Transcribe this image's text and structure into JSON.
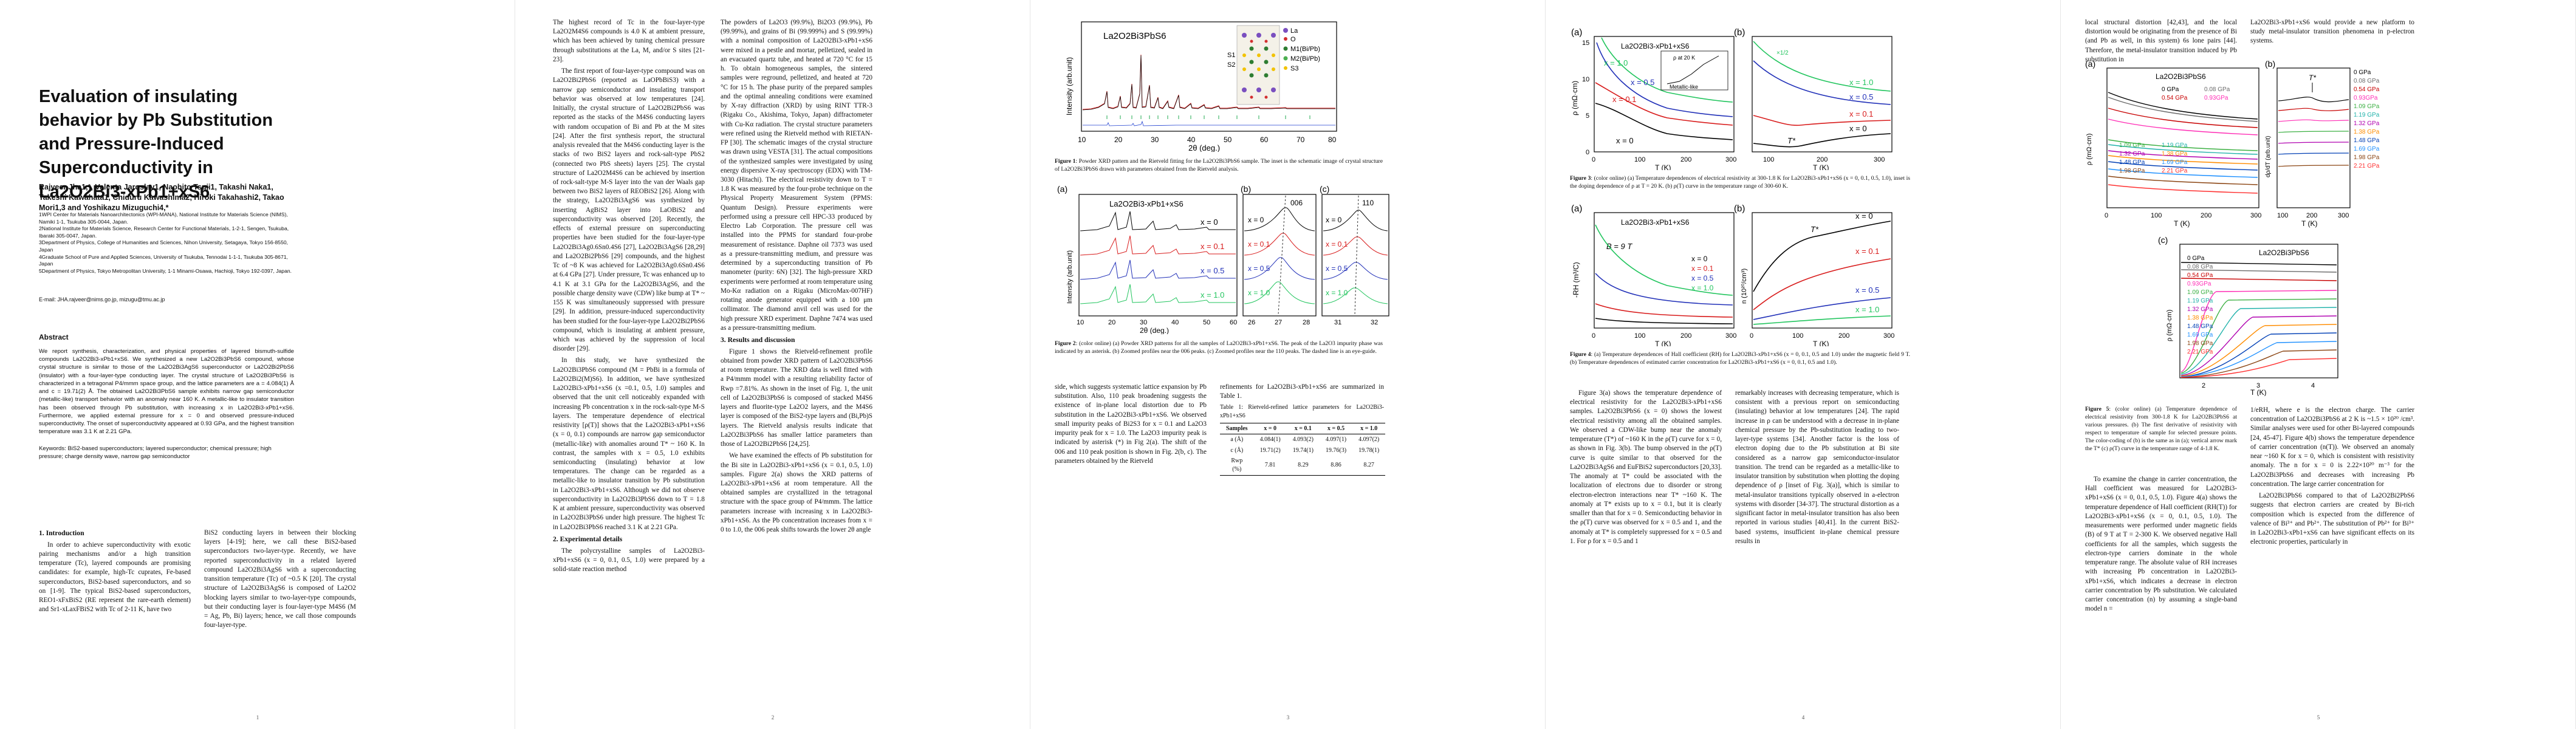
{
  "title": "Evaluation of insulating behavior by Pb Substitution and Pressure-Induced Superconductivity in La2O2Bi3-xPb1+xS6",
  "authors": "Rajveer Jha1,*, Valenta Jaroslav1, Naohito Tsuji1, Takashi Naka1, Takeshi Kawahata1, Chiduru Kawashima2, Hiroki Takahashi2, Takao Mori1,3 and Yoshikazu Mizuguchi4,*",
  "affiliations": [
    "1WPI Center for Materials Nanoarchitectonics (WPI-MANA), National Institute for Materials Science (NIMS), Namiki 1-1, Tsukuba 305-0044, Japan.",
    "2National Institute for Materials Science, Research Center for Functional Materials, 1-2-1, Sengen, Tsukuba, Ibaraki 305-0047, Japan.",
    "3Department of Physics, College of Humanities and Sciences, Nihon University, Setagaya, Tokyo 156-8550, Japan",
    "4Graduate School of Pure and Applied Sciences, University of Tsukuba, Tennodai 1-1-1, Tsukuba 305-8671, Japan",
    "5Department of Physics, Tokyo Metropolitan University, 1-1 Minami-Osawa, Hachioji, Tokyo 192-0397, Japan."
  ],
  "email": "E-mail: JHA.rajveer@nims.go.jp, mizugu@tmu.ac.jp",
  "abstract_heading": "Abstract",
  "abstract": "We report synthesis, characterization, and physical properties of layered bismuth-sulfide compounds La2O2Bi3-xPb1+xS6. We synthesized a new La2O2Bi3PbS6 compound, whose crystal structure is similar to those of the La2O2Bi3AgS6 superconductor or La2O2Bi2PbS6 (insulator) with a four-layer-type conducting layer. The crystal structure of La2O2Bi3PbS6 is characterized in a tetragonal P4/mmm space group, and the lattice parameters are a = 4.084(1) Å and c = 19.71(2) Å. The obtained La2O2Bi3PbS6 sample exhibits narrow gap semiconductor (metallic-like) transport behavior with an anomaly near 160 K. A metallic-like to insulator transition has been observed through Pb substitution, with increasing x in La2O2Bi3-xPb1+xS6. Furthermore, we applied external pressure for x = 0 and observed pressure-induced superconductivity. The onset of superconductivity appeared at 0.93 GPa, and the highest transition temperature was 3.1 K at 2.21 GPa.",
  "keywords": "Keywords: BiS2-based superconductors; layered superconductor; chemical pressure; high pressure; charge density wave, narrow gap semiconductor",
  "p1": {
    "sec1": "1.   Introduction",
    "intro_para": "In order to achieve superconductivity with exotic pairing mechanisms and/or a high transition temperature (Tc), layered compounds are promising candidates: for example, high-Tc cuprates, Fe-based superconductors, BiS2-based superconductors, and so on [1-9]. The typical BiS2-based superconductors, REO1-xFxBiS2 (RE represent the rare-earth element) and Sr1-xLaxFBiS2 with Tc of 2-11 K, have two",
    "col2": "BiS2 conducting layers in between their blocking layers [4-19]; here, we call these BiS2-based superconductors two-layer-type. Recently, we have reported superconductivity in a related layered compound La2O2Bi3AgS6 with a superconducting transition temperature (Tc) of ~0.5 K [20]. The crystal structure of La2O2Bi3AgS6 is composed of La2O2 blocking layers similar to two-layer-type compounds, but their conducting layer is four-layer-type M4S6 (M = Ag, Pb, Bi) layers; hence, we call those compounds four-layer-type."
  },
  "p2": {
    "col1": [
      "The highest record of Tc in the four-layer-type La2O2M4S6 compounds is 4.0 K at ambient pressure, which has been achieved by tuning chemical pressure through substitutions at the La, M, and/or S sites [21-23].",
      "The first report of four-layer-type compound was on La2O2Bi2PbS6 (reported as LaOPbBiS3) with a narrow gap semiconductor and insulating transport behavior was observed at low temperatures [24]. Initially, the crystal structure of La2O2Bi2PbS6 was reported as the stacks of the M4S6 conducting layers with random occupation of Bi and Pb at the M sites [24]. After the first synthesis report, the structural analysis revealed that the M4S6 conducting layer is the stacks of two BiS2 layers and rock-salt-type PbS2 (connected two PbS sheets) layers [25]. The crystal structure of La2O2M4S6 can be achieved by insertion of rock-salt-type M-S layer into the van der Waals gap between two BiS2 layers of REOBiS2 [26]. Along with the strategy, La2O2Bi3AgS6 was synthesized by inserting AgBiS2 layer into LaOBiS2 and superconductivity was observed [20]. Recently, the effects of external pressure on superconducting properties have been studied for the four-layer-type La2O2Bi3Ag0.6Sn0.4S6 [27], La2O2Bi3AgS6 [28,29] and La2O2Bi2PbS6 [29] compounds, and the highest Tc of ~8 K was achieved for La2O2Bi3Ag0.6Sn0.4S6 at 6.4 GPa [27]. Under pressure, Tc was enhanced up to 4.1 K at 3.1 GPa for the La2O2Bi3AgS6, and the possible charge density wave (CDW) like bump at T* ~ 155 K was simultaneously suppressed with pressure [29]. In addition, pressure-induced superconductivity has been studied for the four-layer-type La2O2Bi2PbS6 compound, which is insulating at ambient pressure, which was achieved by the suppression of local disorder [29].",
      "In this study, we have synthesized the La2O2Bi3PbS6 compound (M = PbBi in a formula of La2O2Bi2(M)S6). In addition, we have synthesized La2O2Bi3-xPb1+xS6 (x =0.1, 0.5, 1.0) samples and observed that the unit cell noticeably expanded with increasing Pb concentration x in the rock-salt-type M-S layers. The temperature dependence of electrical resistivity [ρ(T)] shows that the La2O2Bi3-xPb1+xS6 (x = 0, 0.1) compounds are narrow gap semiconductor (metallic-like) with anomalies around T* ~ 160 K. In contrast, the samples with x = 0.5, 1.0 exhibits semiconducting (insulating) behavior at low temperatures. The change can be regarded as a metallic-like to insulator transition by Pb substitution in La2O2Bi3-xPb1+xS6. Although we did not observe superconductivity in La2O2Bi3PbS6 down to T = 1.8 K at ambient pressure, superconductivity was observed in La2O2Bi3PbS6 under high pressure. The highest Tc in La2O2Bi3PbS6 reached 3.1 K at 2.21 GPa."
    ],
    "sec2": "2.   Experimental details",
    "exp_para": "The polycrystalline samples of La2O2Bi3-xPb1+xS6 (x = 0, 0.1, 0.5, 1.0) were prepared by a solid-state reaction method",
    "col2": [
      "The powders of La2O3 (99.9%), Bi2O3 (99.9%), Pb (99.99%), and grains of Bi (99.999%) and S (99.99%) with a nominal composition of La2O2Bi3-xPb1+xS6 were mixed in a pestle and mortar, pelletized, sealed in an evacuated quartz tube, and heated at 720 °C for 15 h. To obtain homogeneous samples, the sintered samples were reground, pelletized, and heated at 720 °C for 15 h. The phase purity of the prepared samples and the optimal annealing conditions were examined by X-ray diffraction (XRD) by using RINT TTR-3 (Rigaku Co., Akishima, Tokyo, Japan) diffractometer with Cu-Kα radiation. The crystal structure parameters were refined using the Rietveld method with RIETAN-FP [30]. The schematic images of the crystal structure was drawn using VESTA [31]. The actual compositions of the synthesized samples were investigated by using energy dispersive X-ray spectroscopy (EDX) with TM-3030 (Hitachi). The electrical resistivity down to T = 1.8 K was measured by the four-probe technique on the Physical Property Measurement System (PPMS: Quantum Design). Pressure experiments were performed using a pressure cell HPC-33 produced by Electro Lab Corporation. The pressure cell was installed into the PPMS for standard four-probe measurement of resistance. Daphne oil 7373 was used as a pressure-transmitting medium, and pressure was determined by a superconducting transition of Pb manometer (purity: 6N) [32]. The high-pressure XRD experiments were performed at room temperature using Mo-Kα radiation on a Rigaku (MicroMax-007HF) rotating anode generator equipped with a 100 μm collimator. The diamond anvil cell was used for the high pressure XRD experiment. Daphne 7474 was used as a pressure-transmitting medium."
    ],
    "sec3": "3.   Results and discussion",
    "res_para": "Figure 1 shows the Rietveld-refinement profile obtained from powder XRD pattern of La2O2Bi3PbS6 at room temperature. The XRD data is well fitted with a P4/mmm model with a resulting reliability factor of Rwp =7.81%. As shown in the inset of Fig. 1, the unit cell of La2O2Bi3PbS6 is composed of stacked M4S6 layers and fluorite-type La2O2 layers, and the M4S6 layer is composed of the BiS2-type layers and (Bi,Pb)S layers. The Rietveld analysis results indicate that La2O2Bi3PbS6 has smaller lattice parameters than those of La2O2Bi2PbS6 [24,25].",
    "res_para2": "We have examined the effects of Pb substitution for the Bi site in La2O2Bi3-xPb1+xS6 (x = 0.1, 0.5, 1.0) samples. Figure 2(a) shows the XRD patterns of La2O2Bi3-xPb1+xS6 at room temperature. All the obtained samples are crystallized in the tetragonal structure with the space group of P4/mmm. The lattice parameters increase with increasing x in La2O2Bi3-xPb1+xS6. As the Pb concentration increases from x = 0 to 1.0, the 006 peak shifts towards the lower 2θ angle"
  },
  "p3": {
    "fig1_caption_label": "Figure 1",
    "fig1_caption": ": Powder XRD pattern and the Rietveld fitting for the La2O2Bi3PbS6 sample. The inset is the schematic image of crystal structure of La2O2Bi3PbS6 drawn with parameters obtained from the Rietveld analysis.",
    "fig2_caption_label": "Figure 2",
    "fig2_caption": ": (color online) (a) Powder XRD patterns for all the samples of La2O2Bi3-xPb1+xS6. The peak of the La2O3 impurity phase was indicated by an asterisk. (b) Zoomed profiles near the 006 peaks. (c) Zoomed profiles near the 110 peaks. The dashed line is an eye-guide.",
    "col1": "side, which suggests systematic lattice expansion by Pb substitution. Also, 110 peak broadening suggests the existence of in-plane local distortion due to Pb substitution in the La2O2Bi3-xPb1+xS6. We observed small impurity peaks of Bi2S3 for x = 0.1 and La2O3 impurity peak for x = 1.0. The La2O3 impurity peak is indicated by asterisk (*) in Fig 2(a). The shift of the 006 and 110 peak position is shown in Fig. 2(b, c). The parameters obtained by the Rietveld",
    "col2": "refinements for La2O2Bi3-xPb1+xS6 are summarized in Table 1.",
    "table_caption": "Table 1: Rietveld-refined lattice parameters for La2O2Bi3-xPb1+xS6",
    "table": {
      "headers": [
        "Samples",
        "x = 0",
        "x = 0.1",
        "x = 0.5",
        "x = 1.0"
      ],
      "rows": [
        [
          "a (Å)",
          "4.084(1)",
          "4.093(2)",
          "4.097(1)",
          "4.097(2)"
        ],
        [
          "c (Å)",
          "19.71(2)",
          "19.74(1)",
          "19.76(3)",
          "19.78(1)"
        ],
        [
          "Rwp (%)",
          "7.81",
          "8.29",
          "8.86",
          "8.27"
        ]
      ]
    },
    "fig1": {
      "label": "La2O2Bi3PbS6",
      "xlabel": "2θ (deg.)",
      "ylabel": "Intensity (arb.unit)",
      "xticks": [
        "10",
        "20",
        "30",
        "40",
        "50",
        "60",
        "70",
        "80"
      ],
      "legend": [
        "La",
        "O",
        "M1(Bi/Pb)",
        "M2(Bi/Pb)",
        "S3"
      ],
      "structure_labels": [
        "S1",
        "S2"
      ]
    },
    "fig2": {
      "a_label": "(a)",
      "b_label": "(b)",
      "c_label": "(c)",
      "formula": "La2O2Bi3-xPb1+xS6",
      "series": [
        "x = 0",
        "x = 0.1",
        "x = 0.5",
        "x = 1.0"
      ],
      "colors": [
        "#000000",
        "#d81b1b",
        "#2130b8",
        "#22c55e"
      ],
      "peak006": "006",
      "peak110": "110",
      "xlabel": "2θ (deg.)",
      "ylabel": "Intensity (arb.unit)",
      "xticks_a": [
        "10",
        "20",
        "30",
        "40",
        "50",
        "60"
      ],
      "xticks_b": [
        "26",
        "27",
        "28"
      ],
      "xticks_c": [
        "31",
        "32"
      ]
    }
  },
  "p4": {
    "fig3_caption_label": "Figure 3",
    "fig3_caption": ": (color online) (a) Temperature dependences of electrical resistivity at 300-1.8 K for La2O2Bi3-xPb1+xS6 (x = 0, 0.1, 0.5, 1.0), inset is the doping dependence of ρ at T = 20 K. (b) ρ(T) curve in the temperature range of 300-60 K.",
    "fig4_caption_label": "Figure 4",
    "fig4_caption": ": (a) Temperature dependences of Hall coefficient (RH) for La2O2Bi3-xPb1+xS6 (x = 0, 0.1, 0.5 and 1.0) under the magnetic field 9 T. (b) Temperature dependences of estimated carrier concentration for La2O2Bi3-xPb1+xS6 (x = 0, 0.1, 0.5 and 1.0).",
    "col1": "Figure 3(a) shows the temperature dependence of electrical resistivity for the La2O2Bi3-xPb1+xS6 samples. La2O2Bi3PbS6 (x = 0) shows the lowest electrical resistivity among all the obtained samples. We observed a CDW-like bump near the anomaly temperature (T*) of ~160 K in the ρ(T) curve for x = 0, as shown in Fig. 3(b). The bump observed in the ρ(T) curve is quite similar to that observed for the La2O2Bi3AgS6 and EuFBiS2 superconductors [20,33]. The anomaly at T* could be associated with the localization of electrons due to disorder or strong electron-electron interactions near T* ~160 K. The anomaly at T* exists up to x = 0.1, but it is clearly smaller than that for x = 0. Semiconducting behavior in the ρ(T) curve was observed for x = 0.5 and 1, and the anomaly at T* is completely suppressed for x = 0.5 and 1. For ρ for x = 0.5 and 1",
    "col2": "remarkably increases with decreasing temperature, which is consistent with a previous report on semiconducting (insulating) behavior at low temperatures [24]. The rapid increase in ρ can be understood with a decrease in in-plane chemical pressure by the Pb-substitution leading to two-layer-type systems [34]. Another factor is the loss of electron doping due to the Pb substitution at Bi site considered as a narrow gap semiconductor-insulator transition. The trend can be regarded as a metallic-like to insulator transition by substitution when plotting the doping dependence of ρ [inset of Fig. 3(a)], which is similar to metal-insulator transitions typically observed in a-electron systems with disorder [34-37]. The structural distortion as a significant factor in metal-insulator transition has also been reported in various studies [40,41]. In the current BiS2-based systems, insufficient in-plane chemical pressure results in",
    "fig3": {
      "a_label": "(a)",
      "b_label": "(b)",
      "formula": "La2O2Bi3-xPb1+xS6",
      "ylabel": "ρ (mΩ·cm)",
      "xlabel": "T (K)",
      "xticks_a": [
        "0",
        "100",
        "200",
        "300"
      ],
      "xticks_b": [
        "100",
        "200",
        "300"
      ],
      "yticks_a": [
        "0",
        "5",
        "10",
        "15"
      ],
      "series": [
        "x = 0",
        "x = 0.1",
        "x = 0.5",
        "x = 1.0"
      ],
      "colors": [
        "#000000",
        "#d81b1b",
        "#2130b8",
        "#22c55e"
      ],
      "tstar": "T*",
      "inset_note": "ρ at 20 K",
      "inset_label": "Metallic-like",
      "curve_note": "×1/2"
    },
    "fig4": {
      "a_label": "(a)",
      "b_label": "(b)",
      "formula": "La2O2Bi3-xPb1+xS6",
      "field": "B = 9 T",
      "ylabel_a": "-RH (m³/C)",
      "ylabel_b": "n (10²⁰/cm³)",
      "xlabel": "T (K)",
      "xticks": [
        "0",
        "100",
        "200",
        "300"
      ],
      "tstar": "T*",
      "series": [
        "x = 0",
        "x = 0.1",
        "x = 0.5",
        "x = 1.0"
      ],
      "colors": [
        "#000000",
        "#d81b1b",
        "#2130b8",
        "#22c55e"
      ]
    }
  },
  "p5": {
    "col1a": "local structural distortion [42,43], and the local distortion would be originating from the presence of Bi (and Pb as well, in this system) 6s lone pairs [44]. Therefore, the metal-insulator transition induced by Pb substitution in",
    "col2a": "La2O2Bi3-xPb1+xS6 would provide a new platform to study metal-insulator transition phenomena in p-electron systems.",
    "fig5_caption_label": "Figure 5",
    "fig5_caption": ": (color online) (a) Temperature dependence of electrical resistivity from 300-1.8 K for La2O2Bi3PbS6 at various pressures. (b) The first derivative of resistivity with respect to temperature of sample for selected pressure points. The color-coding of (b) is the same as in (a); vertical arrow mark the T* (c) ρ(T) curve in the temperature range of 4-1.8 K.",
    "col1b": "To examine the change in carrier concentration, the Hall coefficient was measured for La2O2Bi3-xPb1+xS6 (x = 0, 0.1, 0.5, 1.0). Figure 4(a) shows the temperature dependence of Hall coefficient (RH(T)) for La2O2Bi3-xPb1+xS6 (x = 0, 0.1, 0.5, 1.0). The measurements were performed under magnetic fields (B) of 9 T at T = 2-300 K. We observed negative Hall coefficients for all the samples, which suggests the electron-type carriers dominate in the whole temperature range. The absolute value of RH increases with increasing Pb concentration in La2O2Bi3-xPb1+xS6, which indicates a decrease in electron carrier concentration by Pb substitution. We calculated carrier concentration (n) by assuming a single-band model n =",
    "col2b": "1/eRH, where e is the electron charge. The carrier concentration of La2O2Bi3PbS6 at 2 K is ~1.5 × 10²⁰ /cm³. Similar analyses were used for other Bi-layered compounds [24, 45-47]. Figure 4(b) shows the temperature dependence of carrier concentration (n(T)). We observed an anomaly near ~160 K for x = 0, which is consistent with resistivity anomaly. The n for x = 0 is 2.22×10²⁰ m⁻³ for the La2O2Bi3PbS6 and decreases with increasing Pb concentration. The large carrier concentration for",
    "col2c": "La2O2Bi3PbS6 compared to that of La2O2Bi2PbS6 suggests that electron carriers are created by Bi-rich composition which is expected from the difference of valence of Bi³⁺ and Pb²⁺. The substitution of Pb²⁺ for Bi³⁺ in La2O2Bi3-xPb1+xS6 can have significant effects on its electronic properties, particularly in",
    "fig5": {
      "a_label": "(a)",
      "b_label": "(b)",
      "c_label": "(c)",
      "formula": "La2O2Bi3PbS6",
      "ylabel_a": "ρ (mΩ·cm)",
      "ylabel_b": "dρ/dT (arb.unit)",
      "ylabel_c": "ρ (mΩ·cm)",
      "xlabel": "T (K)",
      "tstar": "T*",
      "pressures": [
        "0 GPa",
        "0.08 GPa",
        "0.54 GPa",
        "0.93GPa",
        "1.09 GPa",
        "1.19 GPa",
        "1.32 GPa",
        "1.38 GPa",
        "1.48 GPa",
        "1.69 GPa",
        "1.98 GPa",
        "2.21 GPa"
      ],
      "colors": [
        "#000000",
        "#6b6b6b",
        "#c70000",
        "#ff2db5",
        "#3cb043",
        "#20b2aa",
        "#b000b0",
        "#ff8c00",
        "#003fb5",
        "#1e90ff",
        "#8b4513",
        "#ff3030"
      ],
      "xticks_a": [
        "0",
        "100",
        "200",
        "300"
      ],
      "xticks_b": [
        "100",
        "200",
        "300"
      ],
      "xticks_c": [
        "2",
        "3",
        "4"
      ]
    }
  },
  "page_numbers": [
    "1",
    "2",
    "3",
    "4",
    "5"
  ]
}
